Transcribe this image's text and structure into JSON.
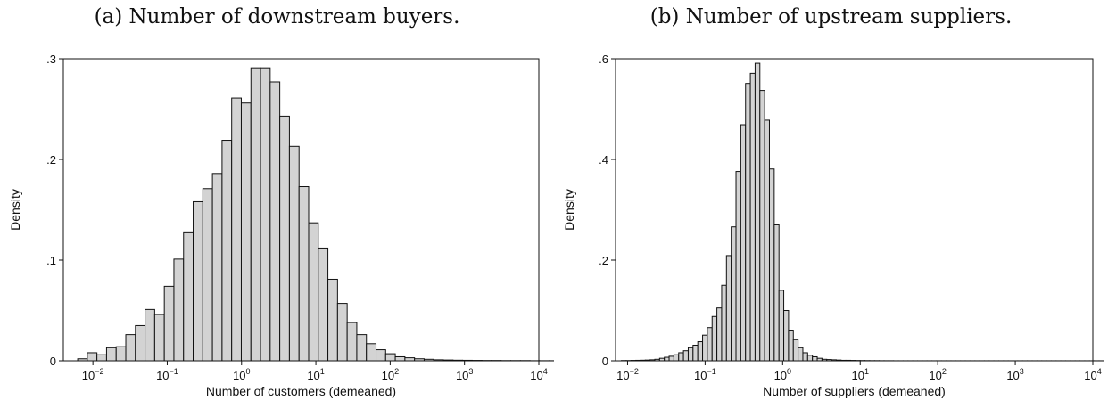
{
  "chart_data": [
    {
      "type": "bar",
      "caption": "(a) Number of downstream buyers.",
      "xlabel": "Number of customers (demeaned)",
      "ylabel": "Density",
      "x_scale": "log10",
      "xlim": [
        0.004,
        10000
      ],
      "ylim": [
        0,
        0.3
      ],
      "yticks": [
        {
          "value": 0,
          "label": "0"
        },
        {
          "value": 0.1,
          "label": ".1"
        },
        {
          "value": 0.2,
          "label": ".2"
        },
        {
          "value": 0.3,
          "label": ".3"
        }
      ],
      "xticks": [
        {
          "value": 0.01,
          "base": "10",
          "exp": "−2"
        },
        {
          "value": 0.1,
          "base": "10",
          "exp": "−1"
        },
        {
          "value": 1,
          "base": "10",
          "exp": "0"
        },
        {
          "value": 10,
          "base": "10",
          "exp": "1"
        },
        {
          "value": 100,
          "base": "10",
          "exp": "2"
        },
        {
          "value": 1000,
          "base": "10",
          "exp": "3"
        },
        {
          "value": 10000,
          "base": "10",
          "exp": "4"
        }
      ],
      "grid": false,
      "bar_fill": "#d3d3d3",
      "bar_stroke": "#111111",
      "bin_start_log10": -2.205,
      "bin_width_log10": 0.1295,
      "values": [
        0.002,
        0.008,
        0.006,
        0.013,
        0.014,
        0.026,
        0.035,
        0.051,
        0.046,
        0.074,
        0.101,
        0.128,
        0.158,
        0.171,
        0.186,
        0.219,
        0.261,
        0.256,
        0.291,
        0.291,
        0.277,
        0.243,
        0.213,
        0.173,
        0.137,
        0.112,
        0.081,
        0.057,
        0.038,
        0.026,
        0.017,
        0.011,
        0.007,
        0.004,
        0.003,
        0.002,
        0.0015,
        0.001,
        0.0008,
        0.0006,
        0.0005,
        0.0004,
        0.0003,
        0.0003,
        0.0002,
        0.0002,
        0.0002,
        0.0001,
        0.0001,
        0.0001,
        0.0001
      ]
    },
    {
      "type": "bar",
      "caption": "(b) Number of upstream suppliers.",
      "xlabel": "Number of suppliers (demeaned)",
      "ylabel": "Density",
      "x_scale": "log10",
      "xlim": [
        0.007,
        10000
      ],
      "ylim": [
        0,
        0.6
      ],
      "yticks": [
        {
          "value": 0,
          "label": "0"
        },
        {
          "value": 0.2,
          "label": ".2"
        },
        {
          "value": 0.4,
          "label": ".4"
        },
        {
          "value": 0.6,
          "label": ".6"
        }
      ],
      "xticks": [
        {
          "value": 0.01,
          "base": "10",
          "exp": "−2"
        },
        {
          "value": 0.1,
          "base": "10",
          "exp": "−1"
        },
        {
          "value": 1,
          "base": "10",
          "exp": "0"
        },
        {
          "value": 10,
          "base": "10",
          "exp": "1"
        },
        {
          "value": 100,
          "base": "10",
          "exp": "2"
        },
        {
          "value": 1000,
          "base": "10",
          "exp": "3"
        },
        {
          "value": 10000,
          "base": "10",
          "exp": "4"
        }
      ],
      "grid": false,
      "bar_fill": "#d3d3d3",
      "bar_stroke": "#111111",
      "bin_start_log10": -2.08,
      "bin_width_log10": 0.0616,
      "values": [
        0.0005,
        0.0005,
        0.0008,
        0.001,
        0.0012,
        0.0015,
        0.002,
        0.003,
        0.005,
        0.007,
        0.009,
        0.012,
        0.016,
        0.02,
        0.026,
        0.031,
        0.038,
        0.051,
        0.066,
        0.088,
        0.105,
        0.15,
        0.209,
        0.266,
        0.376,
        0.469,
        0.551,
        0.571,
        0.591,
        0.537,
        0.478,
        0.381,
        0.27,
        0.14,
        0.1,
        0.061,
        0.042,
        0.026,
        0.016,
        0.011,
        0.008,
        0.005,
        0.003,
        0.0025,
        0.002,
        0.0015,
        0.001,
        0.001,
        0.0008,
        0.0006,
        0.0005,
        0.0004,
        0.0003,
        0.0003,
        0.0002,
        0.0002,
        0.0002,
        0.0001,
        0.0001,
        0.0001,
        0.0001,
        0.0001,
        0.0001,
        0.0001,
        0.0001,
        0.0001,
        0.0001,
        0.0001,
        0.0001,
        0.0001,
        0.0001,
        0.0001,
        0.0001,
        0.0001,
        0.0001,
        0.0001,
        0.0001,
        0.0001,
        0.0001,
        0.0001,
        0.0001,
        0.0001,
        0.0001,
        0.0001,
        0.0001,
        0.0001,
        0.0001,
        0.0001,
        0.0001,
        0.0001,
        0.0001,
        0.0001,
        0.0001,
        0.0001,
        0.0001,
        0.0001,
        0.0001,
        0.0001,
        0.0001,
        0.0001,
        0.0001
      ]
    }
  ]
}
